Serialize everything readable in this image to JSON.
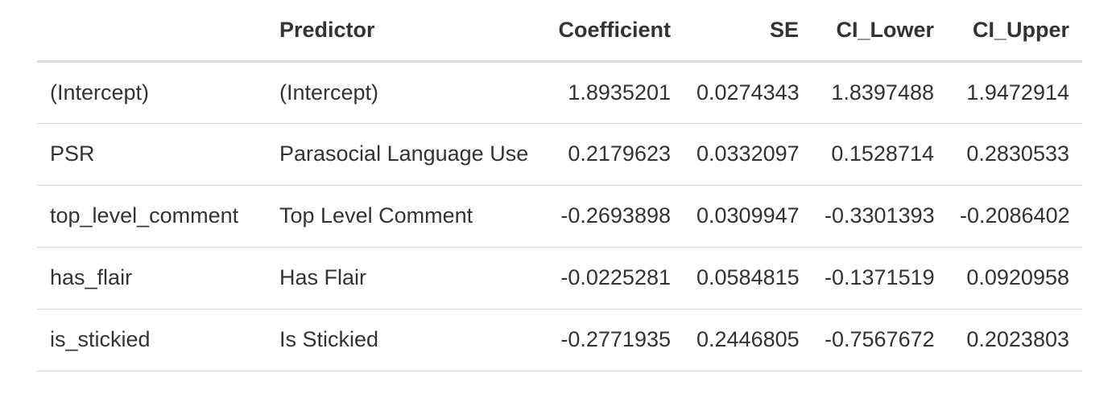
{
  "table": {
    "columns": [
      "",
      "Predictor",
      "Coefficient",
      "SE",
      "CI_Lower",
      "CI_Upper"
    ],
    "rows": [
      [
        "(Intercept)",
        "(Intercept)",
        "1.8935201",
        "0.0274343",
        "1.8397488",
        "1.9472914"
      ],
      [
        "PSR",
        "Parasocial Language Use",
        "0.2179623",
        "0.0332097",
        "0.1528714",
        "0.2830533"
      ],
      [
        "top_level_comment",
        "Top Level Comment",
        "-0.2693898",
        "0.0309947",
        "-0.3301393",
        "-0.2086402"
      ],
      [
        "has_flair",
        "Has Flair",
        "-0.0225281",
        "0.0584815",
        "-0.1371519",
        "0.0920958"
      ],
      [
        "is_stickied",
        "Is Stickied",
        "-0.2771935",
        "0.2446805",
        "-0.7567672",
        "0.2023803"
      ]
    ]
  }
}
